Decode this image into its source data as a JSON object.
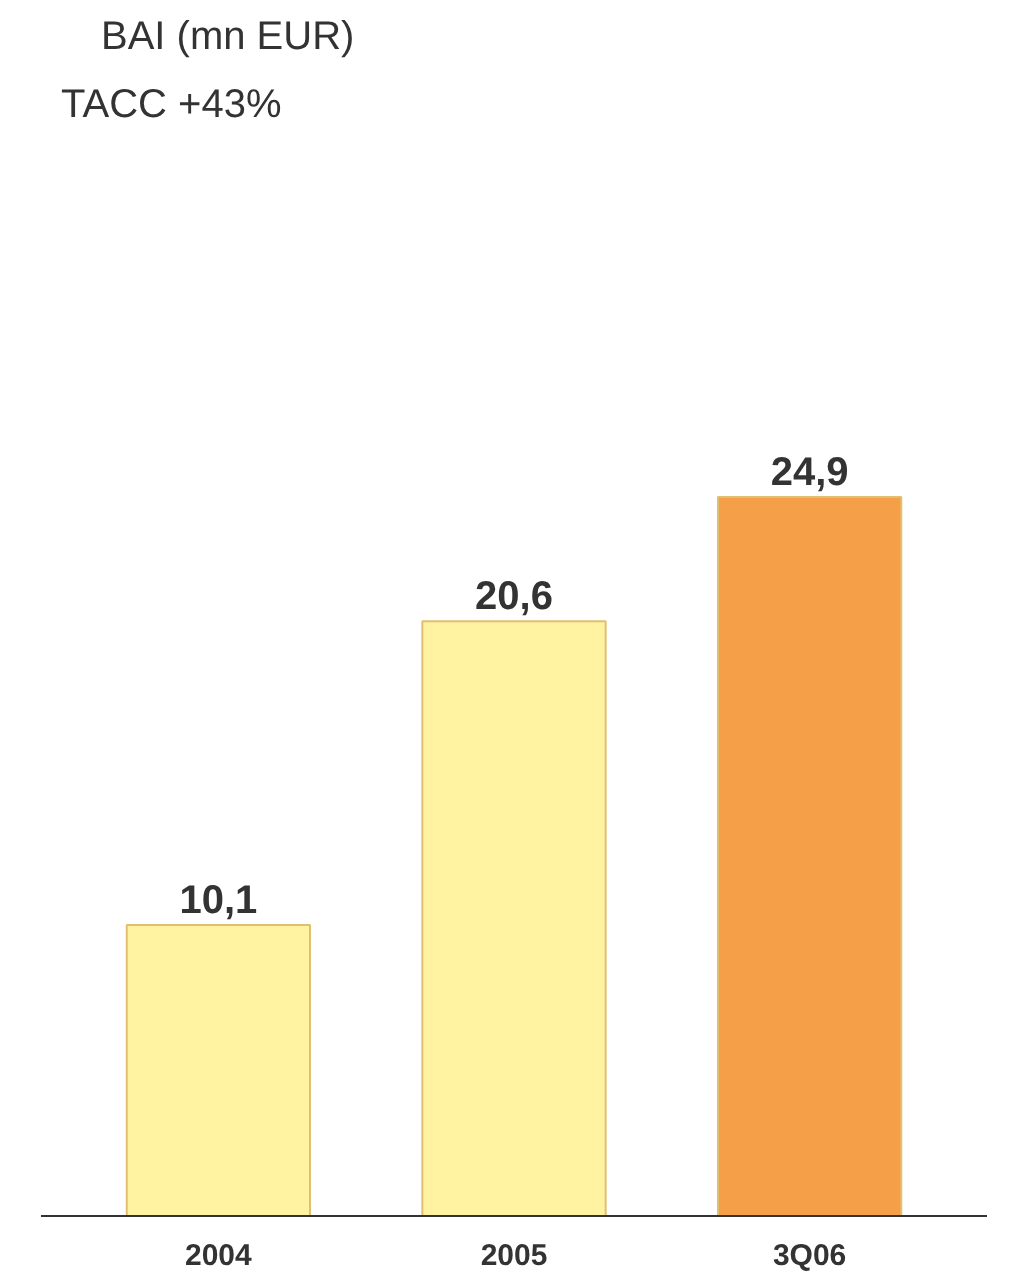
{
  "chart_data": {
    "type": "bar",
    "title": "BAI (mn EUR)",
    "annotations": [
      "TACC +43%"
    ],
    "categories": [
      "2004",
      "2005",
      "3Q06"
    ],
    "values": [
      10.1,
      20.6,
      24.9
    ],
    "colors": [
      "#fff2a0",
      "#fff2a0",
      "#f5a048"
    ],
    "value_labels": [
      "10,1",
      "20,6",
      "24,9"
    ]
  }
}
